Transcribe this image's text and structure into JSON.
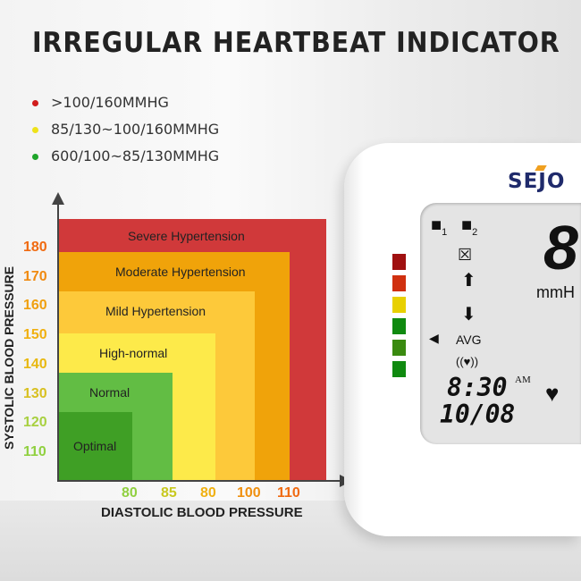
{
  "title": "IRREGULAR HEARTBEAT INDICATOR",
  "legend": [
    {
      "text": ">100/160MMHG",
      "color": "#d01c1c"
    },
    {
      "text": "85/130~100/160MMHG",
      "color": "#eee21a"
    },
    {
      "text": "600/100~85/130MMHG",
      "color": "#1fa52a"
    }
  ],
  "chart": {
    "ylabel": "SYSTOLIC BLOOD PRESSURE",
    "xlabel": "DIASTOLIC BLOOD PRESSURE",
    "yticks": [
      {
        "label": "180",
        "color": "#f06a10"
      },
      {
        "label": "170",
        "color": "#f08a10"
      },
      {
        "label": "160",
        "color": "#f0a010"
      },
      {
        "label": "150",
        "color": "#f0b010"
      },
      {
        "label": "140",
        "color": "#e8b810"
      },
      {
        "label": "130",
        "color": "#d8c020"
      },
      {
        "label": "120",
        "color": "#a8d040"
      },
      {
        "label": "110",
        "color": "#90d040"
      }
    ],
    "xticks": [
      {
        "label": "80",
        "color": "#90d040"
      },
      {
        "label": "85",
        "color": "#c8c820"
      },
      {
        "label": "80",
        "color": "#f0b010"
      },
      {
        "label": "100",
        "color": "#f09010"
      },
      {
        "label": "110",
        "color": "#f06a10"
      }
    ],
    "regions": [
      {
        "label": "Severe Hypertension",
        "color": "#d0393a"
      },
      {
        "label": "Moderate Hypertension",
        "color": "#f0a30a"
      },
      {
        "label": "Mild Hypertension",
        "color": "#fdc93a"
      },
      {
        "label": "High-normal",
        "color": "#fdea4a"
      },
      {
        "label": "Normal",
        "color": "#62bd44"
      },
      {
        "label": "Optimal",
        "color": "#3f9f25"
      }
    ]
  },
  "device": {
    "brand": "SEJO",
    "indicator_colors": [
      "#a01010",
      "#d03010",
      "#e8d000",
      "#108a10",
      "#3a8a10",
      "#108a10"
    ],
    "user1": "1",
    "user2": "2",
    "avg": "AVG",
    "unit": "mmH",
    "time": "8:30",
    "ampm": "AM",
    "date": "10/08"
  }
}
